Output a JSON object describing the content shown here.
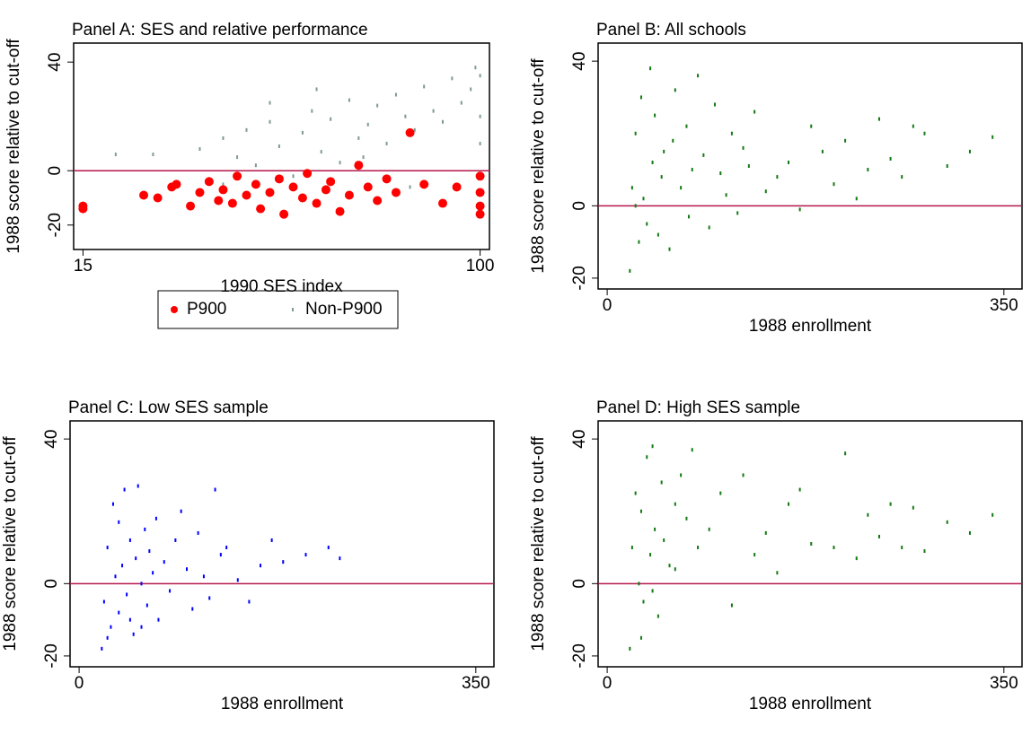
{
  "chart_data": [
    {
      "type": "scatter",
      "title": "Panel A: SES and relative performance",
      "xlabel": "1990 SES index",
      "ylabel": "1988 score relative to cut-off",
      "xlim": [
        13,
        102
      ],
      "ylim": [
        -29,
        47
      ],
      "xticks": [
        15,
        100
      ],
      "yticks": [
        40,
        0,
        -20
      ],
      "hline": 0,
      "hline_color": "#b5164b",
      "legend": "below",
      "series": [
        {
          "name": "P900",
          "color": "#ff0000",
          "marker": "circle",
          "x": [
            15,
            15,
            28,
            31,
            34,
            35,
            38,
            40,
            42,
            44,
            45,
            47,
            48,
            50,
            52,
            53,
            55,
            57,
            58,
            60,
            62,
            63,
            65,
            67,
            68,
            70,
            72,
            74,
            76,
            78,
            80,
            82,
            85,
            88,
            92,
            95,
            100,
            100,
            100,
            100
          ],
          "y": [
            -13,
            -14,
            -9,
            -10,
            -6,
            -5,
            -13,
            -8,
            -4,
            -11,
            -7,
            -12,
            -2,
            -9,
            -5,
            -14,
            -8,
            -3,
            -16,
            -6,
            -10,
            -1,
            -12,
            -7,
            -4,
            -15,
            -9,
            2,
            -6,
            -11,
            -3,
            -8,
            14,
            -5,
            -12,
            -6,
            -2,
            -8,
            -13,
            -16
          ]
        },
        {
          "name": "Non-P900",
          "color": "#7f9a92",
          "marker": "dash",
          "x": [
            22,
            30,
            40,
            42,
            45,
            48,
            50,
            52,
            55,
            57,
            60,
            62,
            64,
            66,
            68,
            70,
            72,
            74,
            76,
            78,
            80,
            82,
            84,
            86,
            88,
            90,
            92,
            94,
            96,
            98,
            99,
            100,
            100,
            100,
            100,
            45,
            55,
            65,
            75,
            85
          ],
          "y": [
            6,
            6,
            8,
            -3,
            12,
            5,
            15,
            2,
            18,
            9,
            -2,
            14,
            22,
            7,
            19,
            3,
            26,
            12,
            17,
            24,
            10,
            28,
            20,
            15,
            31,
            22,
            18,
            34,
            25,
            30,
            38,
            35,
            20,
            10,
            -2,
            -5,
            25,
            30,
            5,
            -6
          ]
        }
      ]
    },
    {
      "type": "scatter",
      "title": "Panel B: All schools",
      "xlabel": "1988 enrollment",
      "ylabel": "1988 score relative to cut-off",
      "xlim": [
        -8,
        366
      ],
      "ylim": [
        -23,
        45
      ],
      "xticks": [
        0,
        350
      ],
      "yticks": [
        40,
        0,
        -20
      ],
      "hline": 0,
      "hline_color": "#b5164b",
      "series": [
        {
          "name": null,
          "color": "#137a13",
          "marker": "dash",
          "x": [
            20,
            22,
            25,
            28,
            30,
            32,
            35,
            38,
            40,
            42,
            45,
            48,
            50,
            55,
            58,
            60,
            65,
            70,
            72,
            75,
            80,
            85,
            90,
            95,
            100,
            105,
            110,
            115,
            120,
            125,
            130,
            140,
            150,
            160,
            170,
            180,
            190,
            200,
            210,
            220,
            230,
            240,
            250,
            260,
            270,
            280,
            300,
            320,
            340,
            25
          ],
          "y": [
            -18,
            5,
            20,
            -10,
            30,
            2,
            -5,
            38,
            12,
            25,
            -8,
            8,
            15,
            -12,
            18,
            32,
            5,
            22,
            -3,
            10,
            36,
            14,
            -6,
            28,
            9,
            3,
            20,
            -2,
            16,
            11,
            26,
            4,
            8,
            12,
            -1,
            22,
            15,
            6,
            18,
            2,
            10,
            24,
            13,
            8,
            22,
            20,
            11,
            15,
            19,
            0
          ]
        }
      ]
    },
    {
      "type": "scatter",
      "title": "Panel C: Low SES sample",
      "xlabel": "1988 enrollment",
      "ylabel": "1988 score relative to cut-off",
      "xlim": [
        -8,
        366
      ],
      "ylim": [
        -23,
        45
      ],
      "xticks": [
        0,
        350
      ],
      "yticks": [
        40,
        0,
        -20
      ],
      "hline": 0,
      "hline_color": "#b5164b",
      "series": [
        {
          "name": null,
          "color": "#0000ff",
          "marker": "dash",
          "x": [
            20,
            22,
            25,
            28,
            30,
            32,
            35,
            38,
            40,
            42,
            45,
            48,
            50,
            52,
            55,
            58,
            60,
            62,
            65,
            68,
            70,
            75,
            80,
            85,
            90,
            95,
            100,
            105,
            110,
            115,
            120,
            125,
            130,
            140,
            150,
            160,
            170,
            180,
            200,
            220,
            230,
            25,
            35,
            45,
            55
          ],
          "y": [
            -18,
            -5,
            10,
            -12,
            22,
            2,
            -8,
            5,
            26,
            -3,
            12,
            -14,
            7,
            27,
            0,
            15,
            -6,
            9,
            3,
            18,
            -10,
            6,
            -2,
            12,
            20,
            4,
            -7,
            14,
            2,
            -4,
            26,
            8,
            10,
            1,
            -5,
            5,
            12,
            6,
            8,
            10,
            7,
            -15,
            17,
            -10,
            -12
          ]
        }
      ]
    },
    {
      "type": "scatter",
      "title": "Panel D: High SES sample",
      "xlabel": "1988 enrollment",
      "ylabel": "1988 score relative to cut-off",
      "xlim": [
        -8,
        366
      ],
      "ylim": [
        -23,
        45
      ],
      "xticks": [
        0,
        350
      ],
      "yticks": [
        40,
        0,
        -20
      ],
      "hline": 0,
      "hline_color": "#b5164b",
      "series": [
        {
          "name": null,
          "color": "#137a13",
          "marker": "dash",
          "x": [
            20,
            22,
            25,
            28,
            30,
            32,
            35,
            38,
            40,
            42,
            45,
            48,
            50,
            55,
            60,
            65,
            70,
            75,
            80,
            90,
            100,
            110,
            120,
            130,
            140,
            150,
            160,
            170,
            180,
            200,
            210,
            220,
            230,
            240,
            250,
            260,
            270,
            280,
            300,
            320,
            340,
            30,
            40,
            60
          ],
          "y": [
            -18,
            10,
            25,
            0,
            20,
            -5,
            35,
            8,
            38,
            15,
            -9,
            28,
            12,
            5,
            22,
            30,
            18,
            37,
            10,
            15,
            25,
            -6,
            30,
            8,
            14,
            3,
            22,
            26,
            11,
            10,
            36,
            7,
            19,
            13,
            22,
            10,
            21,
            9,
            17,
            14,
            19,
            -15,
            -2,
            4
          ]
        }
      ]
    }
  ]
}
